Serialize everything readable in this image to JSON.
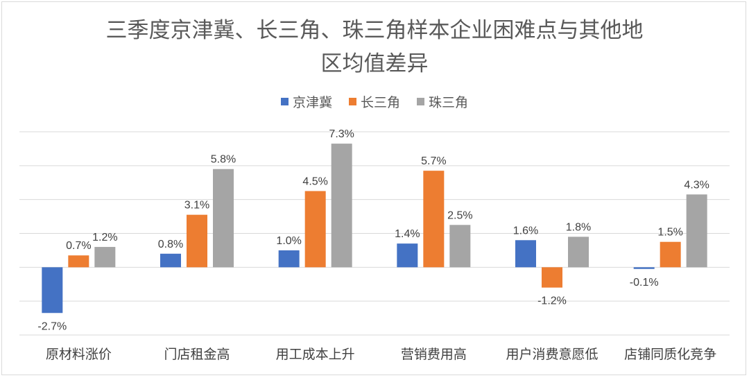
{
  "chart_data": {
    "type": "bar",
    "title_line1": "三季度京津冀、长三角、珠三角样本企业困难点与其他地",
    "title_line2": "区均值差异",
    "categories": [
      "原材料涨价",
      "门店租金高",
      "用工成本上升",
      "营销费用高",
      "用户消费意愿低",
      "店铺同质化竞争"
    ],
    "series": [
      {
        "name": "京津冀",
        "color": "#4472C4",
        "values": [
          -2.7,
          0.8,
          1.0,
          1.4,
          1.6,
          -0.1
        ]
      },
      {
        "name": "长三角",
        "color": "#ED7D31",
        "values": [
          0.7,
          3.1,
          4.5,
          5.7,
          -1.2,
          1.5
        ]
      },
      {
        "name": "珠三角",
        "color": "#A5A5A5",
        "values": [
          1.2,
          5.8,
          7.3,
          2.5,
          1.8,
          4.3
        ]
      }
    ],
    "value_labels": [
      [
        "-2.7%",
        "0.8%",
        "1.0%",
        "1.4%",
        "1.6%",
        "-0.1%"
      ],
      [
        "0.7%",
        "3.1%",
        "4.5%",
        "5.7%",
        "-1.2%",
        "1.5%"
      ],
      [
        "1.2%",
        "5.8%",
        "7.3%",
        "2.5%",
        "1.8%",
        "4.3%"
      ]
    ],
    "ylim": [
      -4,
      8
    ],
    "grid": true,
    "legend_position": "top"
  }
}
